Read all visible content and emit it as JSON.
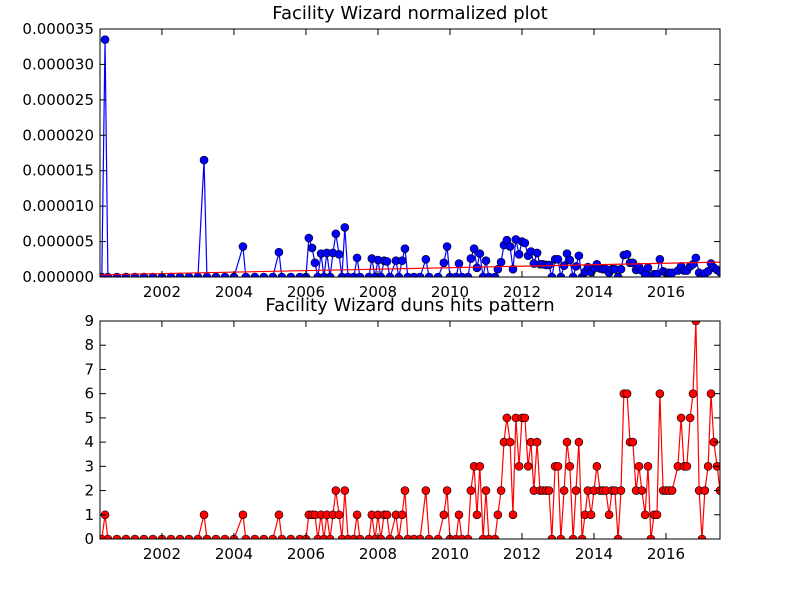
{
  "chart_data": [
    {
      "type": "line",
      "title": "Facility Wizard normalized plot",
      "color": "#0000ff",
      "x": [
        2000.33,
        2000.42,
        2000.5,
        2000.75,
        2001.0,
        2001.25,
        2001.5,
        2001.75,
        2002.0,
        2002.25,
        2002.5,
        2002.75,
        2003.0,
        2003.17,
        2003.25,
        2003.5,
        2003.75,
        2004.0,
        2004.25,
        2004.33,
        2004.58,
        2004.83,
        2005.08,
        2005.25,
        2005.33,
        2005.58,
        2005.83,
        2006.0,
        2006.08,
        2006.17,
        2006.25,
        2006.33,
        2006.42,
        2006.5,
        2006.58,
        2006.67,
        2006.75,
        2006.83,
        2006.92,
        2007.0,
        2007.08,
        2007.17,
        2007.33,
        2007.42,
        2007.5,
        2007.75,
        2007.83,
        2007.92,
        2008.0,
        2008.08,
        2008.17,
        2008.25,
        2008.33,
        2008.5,
        2008.58,
        2008.67,
        2008.75,
        2008.83,
        2009.0,
        2009.17,
        2009.33,
        2009.42,
        2009.67,
        2009.83,
        2009.92,
        2010.0,
        2010.17,
        2010.25,
        2010.33,
        2010.5,
        2010.58,
        2010.67,
        2010.75,
        2010.83,
        2010.92,
        2011.0,
        2011.08,
        2011.25,
        2011.33,
        2011.42,
        2011.5,
        2011.58,
        2011.67,
        2011.75,
        2011.83,
        2011.92,
        2012.0,
        2012.08,
        2012.17,
        2012.25,
        2012.33,
        2012.42,
        2012.5,
        2012.58,
        2012.67,
        2012.75,
        2012.83,
        2012.92,
        2013.0,
        2013.08,
        2013.17,
        2013.25,
        2013.33,
        2013.42,
        2013.5,
        2013.58,
        2013.67,
        2013.75,
        2013.83,
        2013.92,
        2014.0,
        2014.08,
        2014.17,
        2014.25,
        2014.33,
        2014.42,
        2014.5,
        2014.58,
        2014.67,
        2014.75,
        2014.83,
        2014.92,
        2015.0,
        2015.08,
        2015.17,
        2015.25,
        2015.33,
        2015.42,
        2015.5,
        2015.58,
        2015.67,
        2015.75,
        2015.83,
        2015.92,
        2016.0,
        2016.08,
        2016.17,
        2016.33,
        2016.42,
        2016.5,
        2016.58,
        2016.67,
        2016.75,
        2016.83,
        2016.92,
        2017.0,
        2017.08,
        2017.17,
        2017.25,
        2017.33,
        2017.42,
        2017.5
      ],
      "values": [
        0,
        3.35e-05,
        0,
        0,
        0,
        0,
        0,
        0,
        0,
        0,
        0,
        0,
        0,
        1.65e-05,
        0,
        0,
        0,
        0,
        4.3e-06,
        0,
        0,
        0,
        0,
        3.5e-06,
        0,
        0,
        0,
        0,
        5.5e-06,
        4.1e-06,
        2e-06,
        0,
        3.3e-06,
        0,
        3.4e-06,
        0,
        3.4e-06,
        6.1e-06,
        3.2e-06,
        0,
        7e-06,
        0,
        0,
        2.7e-06,
        0,
        0,
        2.6e-06,
        0,
        2.4e-06,
        0,
        2.3e-06,
        2.2e-06,
        0,
        2.3e-06,
        0,
        2.3e-06,
        4e-06,
        0,
        0,
        0,
        2.5e-06,
        0,
        0,
        2e-06,
        4.3e-06,
        0,
        0,
        1.9e-06,
        0,
        0,
        2.6e-06,
        4e-06,
        1.3e-06,
        3.3e-06,
        0,
        2.3e-06,
        0,
        0,
        1.1e-06,
        2.1e-06,
        4.5e-06,
        5.2e-06,
        4.3e-06,
        1.1e-06,
        5.3e-06,
        3.2e-06,
        5e-06,
        4.8e-06,
        3e-06,
        3.6e-06,
        1.9e-06,
        3.4e-06,
        1.8e-06,
        1.8e-06,
        1.7e-06,
        1.7e-06,
        0,
        2.5e-06,
        2.5e-06,
        0,
        1.6e-06,
        3.3e-06,
        2.4e-06,
        0,
        1.5e-06,
        3e-06,
        0,
        7e-07,
        1.4e-06,
        7e-07,
        1.2e-06,
        1.8e-06,
        1.2e-06,
        1.1e-06,
        1.1e-06,
        6e-07,
        1.1e-06,
        1.1e-06,
        0,
        1.1e-06,
        3.1e-06,
        3.2e-06,
        2e-06,
        2e-06,
        1e-06,
        1.4e-06,
        9e-07,
        4e-07,
        1.3e-06,
        0,
        4e-07,
        4e-07,
        2.5e-06,
        8e-07,
        6e-07,
        6e-07,
        6e-07,
        9e-07,
        1.5e-06,
        9e-07,
        9e-07,
        1.5e-06,
        1.8e-06,
        2.7e-06,
        6e-07,
        0,
        5e-07,
        8e-07,
        1.9e-06,
        1.3e-06,
        1e-06,
        7e-07
      ],
      "trend": {
        "x": [
          2000.28,
          2017.5
        ],
        "values": [
          3e-07,
          2.1e-06
        ],
        "color": "#ff0000"
      },
      "xlim": [
        2000.28,
        2017.5
      ],
      "xticks": [
        2002,
        2004,
        2006,
        2008,
        2010,
        2012,
        2014,
        2016
      ],
      "ylim": [
        0,
        3.5e-05
      ],
      "yticks": [
        {
          "value": 0,
          "label": "0.000000"
        },
        {
          "value": 5e-06,
          "label": "0.000005"
        },
        {
          "value": 1e-05,
          "label": "0.000010"
        },
        {
          "value": 1.5e-05,
          "label": "0.000015"
        },
        {
          "value": 2e-05,
          "label": "0.000020"
        },
        {
          "value": 2.5e-05,
          "label": "0.000025"
        },
        {
          "value": 3e-05,
          "label": "0.000030"
        },
        {
          "value": 3.5e-05,
          "label": "0.000035"
        }
      ]
    },
    {
      "type": "line",
      "title": "Facility Wizard duns hits pattern",
      "color": "#ff0000",
      "x": [
        2000.33,
        2000.42,
        2000.5,
        2000.75,
        2001.0,
        2001.25,
        2001.5,
        2001.75,
        2002.0,
        2002.25,
        2002.5,
        2002.75,
        2003.0,
        2003.17,
        2003.25,
        2003.5,
        2003.75,
        2004.0,
        2004.25,
        2004.33,
        2004.58,
        2004.83,
        2005.08,
        2005.25,
        2005.33,
        2005.58,
        2005.83,
        2006.0,
        2006.08,
        2006.17,
        2006.25,
        2006.33,
        2006.42,
        2006.5,
        2006.58,
        2006.67,
        2006.75,
        2006.83,
        2006.92,
        2007.0,
        2007.08,
        2007.17,
        2007.33,
        2007.42,
        2007.5,
        2007.75,
        2007.83,
        2007.92,
        2008.0,
        2008.08,
        2008.17,
        2008.25,
        2008.33,
        2008.5,
        2008.58,
        2008.67,
        2008.75,
        2008.83,
        2009.0,
        2009.17,
        2009.33,
        2009.42,
        2009.67,
        2009.83,
        2009.92,
        2010.0,
        2010.17,
        2010.25,
        2010.33,
        2010.5,
        2010.58,
        2010.67,
        2010.75,
        2010.83,
        2010.92,
        2011.0,
        2011.08,
        2011.25,
        2011.33,
        2011.42,
        2011.5,
        2011.58,
        2011.67,
        2011.75,
        2011.83,
        2011.92,
        2012.0,
        2012.08,
        2012.17,
        2012.25,
        2012.33,
        2012.42,
        2012.5,
        2012.58,
        2012.67,
        2012.75,
        2012.83,
        2012.92,
        2013.0,
        2013.08,
        2013.17,
        2013.25,
        2013.33,
        2013.42,
        2013.5,
        2013.58,
        2013.67,
        2013.75,
        2013.83,
        2013.92,
        2014.0,
        2014.08,
        2014.17,
        2014.25,
        2014.33,
        2014.42,
        2014.5,
        2014.58,
        2014.67,
        2014.75,
        2014.83,
        2014.92,
        2015.0,
        2015.08,
        2015.17,
        2015.25,
        2015.33,
        2015.42,
        2015.5,
        2015.58,
        2015.67,
        2015.75,
        2015.83,
        2015.92,
        2016.0,
        2016.08,
        2016.17,
        2016.33,
        2016.42,
        2016.5,
        2016.58,
        2016.67,
        2016.75,
        2016.83,
        2016.92,
        2017.0,
        2017.08,
        2017.17,
        2017.25,
        2017.33,
        2017.42,
        2017.5
      ],
      "values": [
        0,
        1,
        0,
        0,
        0,
        0,
        0,
        0,
        0,
        0,
        0,
        0,
        0,
        1,
        0,
        0,
        0,
        0,
        1,
        0,
        0,
        0,
        0,
        1,
        0,
        0,
        0,
        0,
        1,
        1,
        1,
        0,
        1,
        0,
        1,
        0,
        1,
        2,
        1,
        0,
        2,
        0,
        0,
        1,
        0,
        0,
        1,
        0,
        1,
        0,
        1,
        1,
        0,
        1,
        0,
        1,
        2,
        0,
        0,
        0,
        2,
        0,
        0,
        1,
        2,
        0,
        0,
        1,
        0,
        0,
        2,
        3,
        1,
        3,
        0,
        2,
        0,
        0,
        1,
        2,
        4,
        5,
        4,
        1,
        5,
        3,
        5,
        5,
        3,
        4,
        2,
        4,
        2,
        2,
        2,
        2,
        0,
        3,
        3,
        0,
        2,
        4,
        3,
        0,
        2,
        4,
        0,
        1,
        2,
        1,
        2,
        3,
        2,
        2,
        2,
        1,
        2,
        2,
        0,
        2,
        6,
        6,
        4,
        4,
        2,
        3,
        2,
        1,
        3,
        0,
        1,
        1,
        6,
        2,
        2,
        2,
        2,
        3,
        5,
        3,
        3,
        5,
        6,
        9,
        2,
        0,
        2,
        3,
        6,
        4,
        3,
        2
      ],
      "xlim": [
        2000.28,
        2017.5
      ],
      "xticks": [
        2002,
        2004,
        2006,
        2008,
        2010,
        2012,
        2014,
        2016
      ],
      "ylim": [
        0,
        9
      ],
      "yticks": [
        0,
        1,
        2,
        3,
        4,
        5,
        6,
        7,
        8,
        9
      ]
    }
  ]
}
